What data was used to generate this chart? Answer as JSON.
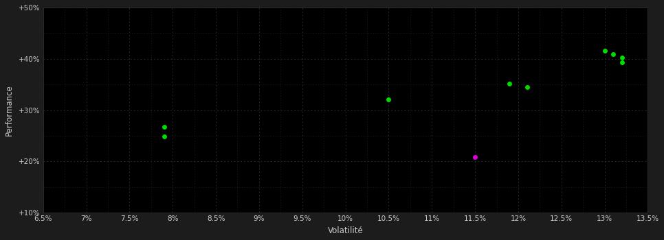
{
  "figure_bg_color": "#1c1c1c",
  "plot_bg_color": "#000000",
  "grid_color": "#2a2a2a",
  "minor_grid_color": "#1e1e1e",
  "text_color": "#cccccc",
  "xlabel": "Volatilité",
  "ylabel": "Performance",
  "xlim": [
    0.065,
    0.135
  ],
  "ylim": [
    0.1,
    0.5
  ],
  "xticks": [
    0.065,
    0.07,
    0.075,
    0.08,
    0.085,
    0.09,
    0.095,
    0.1,
    0.105,
    0.11,
    0.115,
    0.12,
    0.125,
    0.13,
    0.135
  ],
  "yticks": [
    0.1,
    0.2,
    0.3,
    0.4,
    0.5
  ],
  "minor_xticks": [
    0.0675,
    0.0725,
    0.0775,
    0.0825,
    0.0875,
    0.0925,
    0.0975,
    0.1025,
    0.1075,
    0.1125,
    0.1175,
    0.1225,
    0.1275,
    0.1325
  ],
  "minor_yticks": [
    0.15,
    0.25,
    0.35,
    0.45
  ],
  "points_green": [
    [
      0.079,
      0.268
    ],
    [
      0.079,
      0.249
    ],
    [
      0.105,
      0.321
    ],
    [
      0.119,
      0.352
    ],
    [
      0.121,
      0.345
    ],
    [
      0.13,
      0.416
    ],
    [
      0.131,
      0.409
    ],
    [
      0.132,
      0.403
    ],
    [
      0.132,
      0.393
    ]
  ],
  "points_magenta": [
    [
      0.115,
      0.209
    ]
  ],
  "green_color": "#00dd00",
  "magenta_color": "#dd00dd",
  "marker_size": 5
}
